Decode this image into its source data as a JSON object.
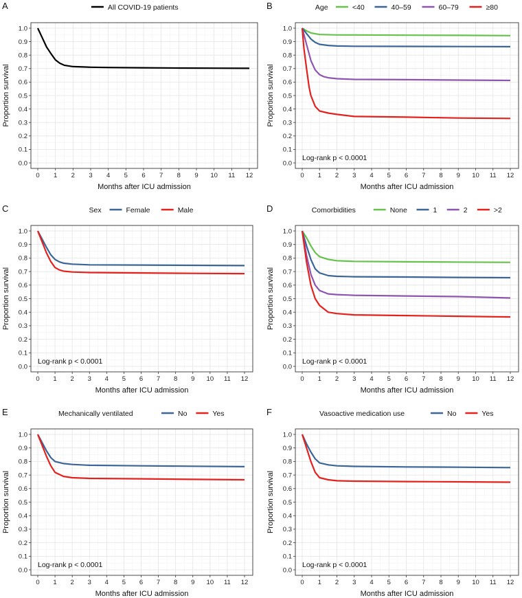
{
  "chart_data": [
    {
      "panel": "A",
      "type": "line",
      "xlabel": "Months after ICU admission",
      "ylabel": "Proportion survival",
      "xlim": [
        0,
        12
      ],
      "ylim": [
        0,
        1
      ],
      "xticks": [
        "0",
        "1",
        "2",
        "3",
        "4",
        "5",
        "6",
        "7",
        "8",
        "9",
        "10",
        "11",
        "12"
      ],
      "yticks": [
        "0.0",
        "0.1",
        "0.2",
        "0.3",
        "0.4",
        "0.5",
        "0.6",
        "0.7",
        "0.8",
        "0.9",
        "1.0"
      ],
      "legend_title": "",
      "logrank": "",
      "series": [
        {
          "name": "All COVID-19 patients",
          "color": "#000000",
          "x": [
            0,
            0.25,
            0.5,
            0.75,
            1,
            1.25,
            1.5,
            2,
            3,
            4,
            6,
            8,
            10,
            12
          ],
          "y": [
            1,
            0.93,
            0.86,
            0.81,
            0.765,
            0.74,
            0.725,
            0.715,
            0.71,
            0.708,
            0.706,
            0.704,
            0.703,
            0.702
          ]
        }
      ]
    },
    {
      "panel": "B",
      "type": "line",
      "xlabel": "Months after ICU admission",
      "ylabel": "Proportion survival",
      "xlim": [
        0,
        12
      ],
      "ylim": [
        0,
        1
      ],
      "xticks": [
        "0",
        "1",
        "2",
        "3",
        "4",
        "5",
        "6",
        "7",
        "8",
        "9",
        "10",
        "11",
        "12"
      ],
      "yticks": [
        "0.0",
        "0.1",
        "0.2",
        "0.3",
        "0.4",
        "0.5",
        "0.6",
        "0.7",
        "0.8",
        "0.9",
        "1.0"
      ],
      "legend_title": "Age",
      "logrank": "Log-rank p < 0.0001",
      "series": [
        {
          "name": "<40",
          "color": "#66c24a",
          "x": [
            0,
            0.25,
            0.5,
            1,
            2,
            3,
            6,
            9,
            12
          ],
          "y": [
            1,
            0.98,
            0.965,
            0.953,
            0.95,
            0.95,
            0.948,
            0.947,
            0.945
          ]
        },
        {
          "name": "40–59",
          "color": "#3a6596",
          "x": [
            0,
            0.25,
            0.5,
            0.75,
            1,
            1.5,
            2,
            3,
            6,
            9,
            12
          ],
          "y": [
            1,
            0.96,
            0.92,
            0.895,
            0.88,
            0.872,
            0.868,
            0.866,
            0.865,
            0.864,
            0.863
          ]
        },
        {
          "name": "60–79",
          "color": "#8e55b0",
          "x": [
            0,
            0.25,
            0.5,
            0.75,
            1,
            1.25,
            1.5,
            2,
            3,
            6,
            9,
            12
          ],
          "y": [
            1,
            0.88,
            0.76,
            0.69,
            0.655,
            0.64,
            0.632,
            0.625,
            0.62,
            0.618,
            0.615,
            0.612
          ]
        },
        {
          "name": "≥80",
          "color": "#e3211d",
          "x": [
            0,
            0.1,
            0.25,
            0.4,
            0.5,
            0.75,
            1,
            1.5,
            2,
            3,
            6,
            9,
            12
          ],
          "y": [
            1,
            0.85,
            0.7,
            0.56,
            0.5,
            0.42,
            0.385,
            0.37,
            0.36,
            0.345,
            0.34,
            0.333,
            0.33
          ]
        }
      ]
    },
    {
      "panel": "C",
      "type": "line",
      "xlabel": "Months after ICU admission",
      "ylabel": "Proportion survival",
      "xlim": [
        0,
        12
      ],
      "ylim": [
        0,
        1
      ],
      "xticks": [
        "0",
        "1",
        "2",
        "3",
        "4",
        "5",
        "6",
        "7",
        "8",
        "9",
        "10",
        "11",
        "12"
      ],
      "yticks": [
        "0.0",
        "0.1",
        "0.2",
        "0.3",
        "0.4",
        "0.5",
        "0.6",
        "0.7",
        "0.8",
        "0.9",
        "1.0"
      ],
      "legend_title": "Sex",
      "logrank": "Log-rank p < 0.0001",
      "series": [
        {
          "name": "Female",
          "color": "#3a6596",
          "x": [
            0,
            0.25,
            0.5,
            0.75,
            1,
            1.25,
            1.5,
            2,
            3,
            6,
            9,
            12
          ],
          "y": [
            1,
            0.94,
            0.88,
            0.825,
            0.79,
            0.772,
            0.762,
            0.755,
            0.75,
            0.748,
            0.746,
            0.744
          ]
        },
        {
          "name": "Male",
          "color": "#e3211d",
          "x": [
            0,
            0.25,
            0.5,
            0.75,
            1,
            1.25,
            1.5,
            2,
            3,
            6,
            9,
            12
          ],
          "y": [
            1,
            0.92,
            0.84,
            0.775,
            0.73,
            0.712,
            0.703,
            0.697,
            0.693,
            0.69,
            0.687,
            0.685
          ]
        }
      ]
    },
    {
      "panel": "D",
      "type": "line",
      "xlabel": "Months after ICU admission",
      "ylabel": "Proportion survival",
      "xlim": [
        0,
        12
      ],
      "ylim": [
        0,
        1
      ],
      "xticks": [
        "0",
        "1",
        "2",
        "3",
        "4",
        "5",
        "6",
        "7",
        "8",
        "9",
        "10",
        "11",
        "12"
      ],
      "yticks": [
        "0.0",
        "0.1",
        "0.2",
        "0.3",
        "0.4",
        "0.5",
        "0.6",
        "0.7",
        "0.8",
        "0.9",
        "1.0"
      ],
      "legend_title": "Comorbidities",
      "logrank": "Log-rank p < 0.0001",
      "series": [
        {
          "name": "None",
          "color": "#66c24a",
          "x": [
            0,
            0.25,
            0.5,
            0.75,
            1,
            1.5,
            2,
            3,
            6,
            9,
            12
          ],
          "y": [
            1,
            0.95,
            0.89,
            0.84,
            0.81,
            0.79,
            0.78,
            0.775,
            0.772,
            0.77,
            0.768
          ]
        },
        {
          "name": "1",
          "color": "#3a6596",
          "x": [
            0,
            0.25,
            0.5,
            0.75,
            1,
            1.5,
            2,
            3,
            6,
            9,
            12
          ],
          "y": [
            1,
            0.89,
            0.79,
            0.72,
            0.69,
            0.67,
            0.665,
            0.662,
            0.66,
            0.657,
            0.655
          ]
        },
        {
          "name": "2",
          "color": "#8e55b0",
          "x": [
            0,
            0.25,
            0.5,
            0.75,
            1,
            1.5,
            2,
            3,
            6,
            9,
            12
          ],
          "y": [
            1,
            0.82,
            0.68,
            0.6,
            0.56,
            0.535,
            0.53,
            0.525,
            0.52,
            0.515,
            0.505
          ]
        },
        {
          "name": ">2",
          "color": "#e3211d",
          "x": [
            0,
            0.25,
            0.5,
            0.75,
            1,
            1.5,
            2,
            3,
            6,
            9,
            12
          ],
          "y": [
            1,
            0.77,
            0.6,
            0.5,
            0.45,
            0.4,
            0.39,
            0.38,
            0.375,
            0.37,
            0.365
          ]
        }
      ]
    },
    {
      "panel": "E",
      "type": "line",
      "xlabel": "Months after ICU admission",
      "ylabel": "Proportion survival",
      "xlim": [
        0,
        12
      ],
      "ylim": [
        0,
        1
      ],
      "xticks": [
        "0",
        "1",
        "2",
        "3",
        "4",
        "5",
        "6",
        "7",
        "8",
        "9",
        "10",
        "11",
        "12"
      ],
      "yticks": [
        "0.0",
        "0.1",
        "0.2",
        "0.3",
        "0.4",
        "0.5",
        "0.6",
        "0.7",
        "0.8",
        "0.9",
        "1.0"
      ],
      "legend_title": "Mechanically ventilated",
      "logrank": "Log-rank p < 0.0001",
      "series": [
        {
          "name": "No",
          "color": "#3a6596",
          "x": [
            0,
            0.25,
            0.5,
            0.75,
            1,
            1.5,
            2,
            3,
            6,
            9,
            12
          ],
          "y": [
            1,
            0.94,
            0.88,
            0.83,
            0.8,
            0.785,
            0.778,
            0.772,
            0.768,
            0.765,
            0.762
          ]
        },
        {
          "name": "Yes",
          "color": "#e3211d",
          "x": [
            0,
            0.25,
            0.5,
            0.75,
            1,
            1.5,
            2,
            3,
            6,
            9,
            12
          ],
          "y": [
            1,
            0.92,
            0.84,
            0.77,
            0.72,
            0.69,
            0.68,
            0.675,
            0.672,
            0.668,
            0.665
          ]
        }
      ]
    },
    {
      "panel": "F",
      "type": "line",
      "xlabel": "Months after ICU admission",
      "ylabel": "Proportion survival",
      "xlim": [
        0,
        12
      ],
      "ylim": [
        0,
        1
      ],
      "xticks": [
        "0",
        "1",
        "2",
        "3",
        "4",
        "5",
        "6",
        "7",
        "8",
        "9",
        "10",
        "11",
        "12"
      ],
      "yticks": [
        "0.0",
        "0.1",
        "0.2",
        "0.3",
        "0.4",
        "0.5",
        "0.6",
        "0.7",
        "0.8",
        "0.9",
        "1.0"
      ],
      "legend_title": "Vasoactive medication use",
      "logrank": "Log-rank p < 0.0001",
      "series": [
        {
          "name": "No",
          "color": "#3a6596",
          "x": [
            0,
            0.25,
            0.5,
            0.75,
            1,
            1.5,
            2,
            3,
            6,
            9,
            12
          ],
          "y": [
            1,
            0.93,
            0.87,
            0.82,
            0.79,
            0.775,
            0.768,
            0.764,
            0.76,
            0.758,
            0.755
          ]
        },
        {
          "name": "Yes",
          "color": "#e3211d",
          "x": [
            0,
            0.25,
            0.5,
            0.75,
            1,
            1.5,
            2,
            3,
            6,
            9,
            12
          ],
          "y": [
            1,
            0.9,
            0.8,
            0.72,
            0.68,
            0.665,
            0.658,
            0.655,
            0.652,
            0.65,
            0.647
          ]
        }
      ]
    }
  ]
}
